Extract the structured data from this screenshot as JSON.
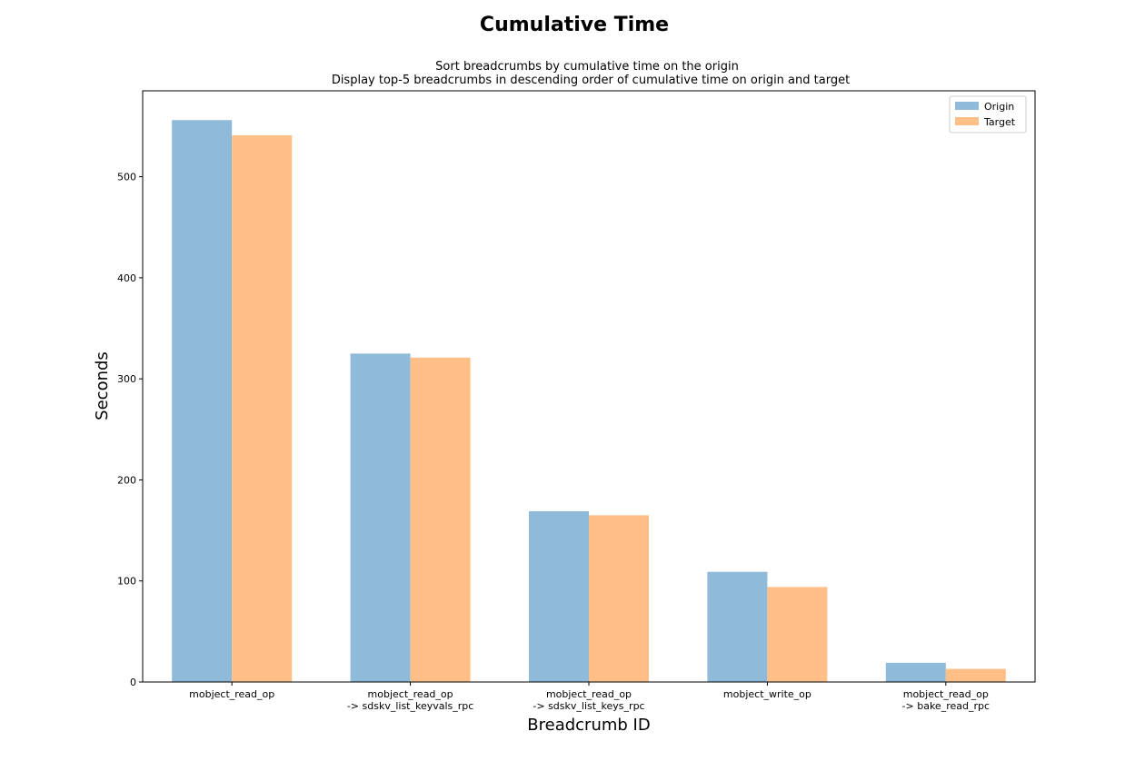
{
  "chart_data": {
    "type": "bar",
    "title": "Cumulative Time",
    "subtitle_lines": [
      "Sort breadcrumbs by cumulative time on the origin",
      "Display top-5 breadcrumbs in descending order of cumulative time on origin and target"
    ],
    "xlabel": "Breadcrumb ID",
    "ylabel": "Seconds",
    "ylim": [
      0,
      585
    ],
    "yticks": [
      0,
      100,
      200,
      300,
      400,
      500
    ],
    "categories": [
      [
        "mobject_read_op"
      ],
      [
        "mobject_read_op",
        "-> sdskv_list_keyvals_rpc"
      ],
      [
        "mobject_read_op",
        "-> sdskv_list_keys_rpc"
      ],
      [
        "mobject_write_op"
      ],
      [
        "mobject_read_op",
        "-> bake_read_rpc"
      ]
    ],
    "series": [
      {
        "name": "Origin",
        "color": "#8fbad9",
        "values": [
          556,
          325,
          169,
          109,
          19
        ]
      },
      {
        "name": "Target",
        "color": "#ffbf86",
        "values": [
          541,
          321,
          165,
          94,
          13
        ]
      }
    ],
    "legend": {
      "placement": "top-right"
    },
    "grid": false
  }
}
